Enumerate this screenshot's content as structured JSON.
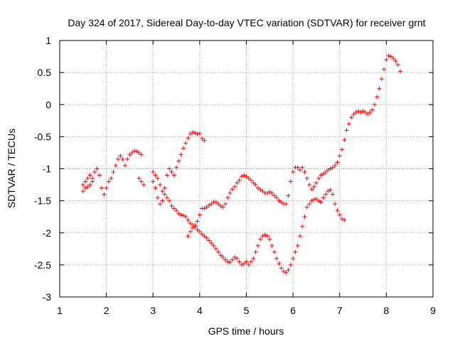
{
  "chart_data": {
    "type": "scatter",
    "title": "Day 324 of 2017, Sidereal Day-to-day VTEC variation (SDTVAR) for receiver grnt",
    "xlabel": "GPS time / hours",
    "ylabel": "SDTVAR / TECUs",
    "xlim": [
      1,
      9
    ],
    "ylim": [
      -3,
      1
    ],
    "xticks": [
      "1",
      "2",
      "3",
      "4",
      "5",
      "6",
      "7",
      "8",
      "9"
    ],
    "yticks": [
      "1",
      "0.5",
      "0",
      "-0.5",
      "-1",
      "-1.5",
      "-2",
      "-2.5",
      "-3"
    ],
    "grid": true,
    "marker": "+",
    "color": "#ff0000",
    "series": [
      {
        "x": [
          1.5,
          1.55,
          1.6,
          1.65,
          1.7,
          1.75,
          1.8,
          1.85,
          1.9,
          1.95,
          2.0,
          2.05,
          2.1,
          2.15,
          2.2,
          2.25,
          2.3,
          2.35,
          2.4,
          2.45,
          2.5,
          2.55,
          2.6,
          2.65,
          2.7,
          2.75
        ],
        "y": [
          -1.25,
          -1.2,
          -1.15,
          -1.1,
          -1.15,
          -1.05,
          -1.0,
          -1.1,
          -1.3,
          -1.4,
          -1.3,
          -1.2,
          -1.15,
          -1.05,
          -0.95,
          -0.85,
          -0.8,
          -0.85,
          -0.95,
          -0.85,
          -0.78,
          -0.75,
          -0.72,
          -0.73,
          -0.75,
          -0.78
        ]
      },
      {
        "x": [
          1.5,
          1.55,
          1.6,
          1.65,
          1.7
        ],
        "y": [
          -1.35,
          -1.3,
          -1.28,
          -1.25,
          -1.2
        ]
      },
      {
        "x": [
          2.7,
          2.75,
          2.8
        ],
        "y": [
          -1.15,
          -1.2,
          -1.25
        ]
      },
      {
        "x": [
          3.0,
          3.05,
          3.1,
          3.15,
          3.2,
          3.25,
          3.3,
          3.35,
          3.4,
          3.45,
          3.5,
          3.55,
          3.6,
          3.65,
          3.7,
          3.75,
          3.8,
          3.85,
          3.9,
          3.95,
          4.0,
          4.05,
          4.1
        ],
        "y": [
          -1.2,
          -1.3,
          -1.45,
          -1.55,
          -1.5,
          -1.3,
          -1.1,
          -1.0,
          -1.05,
          -1.1,
          -0.98,
          -0.88,
          -0.78,
          -0.68,
          -0.6,
          -0.52,
          -0.46,
          -0.43,
          -0.44,
          -0.46,
          -0.45,
          -0.53,
          -0.56
        ]
      },
      {
        "x": [
          3.0,
          3.05,
          3.1,
          3.15,
          3.2,
          3.25,
          3.3,
          3.35,
          3.4,
          3.45,
          3.5,
          3.55,
          3.6,
          3.65,
          3.7,
          3.75,
          3.8,
          3.85,
          3.9,
          3.95,
          4.0,
          4.05,
          4.1,
          4.15,
          4.2,
          4.25,
          4.3,
          4.35,
          4.4,
          4.45,
          4.5,
          4.55,
          4.6,
          4.65,
          4.7,
          4.75,
          4.8,
          4.85,
          4.9,
          4.95,
          5.0,
          5.05,
          5.1,
          5.15,
          5.2,
          5.25,
          5.3,
          5.35,
          5.4,
          5.45,
          5.5,
          5.55,
          5.6,
          5.65,
          5.7,
          5.75,
          5.8,
          5.85,
          5.9,
          5.95,
          6.0,
          6.05,
          6.1,
          6.15,
          6.2,
          6.25,
          6.3,
          6.35,
          6.4,
          6.45,
          6.5,
          6.55,
          6.6,
          6.65,
          6.7,
          6.75,
          6.8,
          6.85,
          6.9,
          6.95,
          7.0,
          7.05,
          7.1
        ],
        "y": [
          -1.05,
          -1.1,
          -1.15,
          -1.25,
          -1.35,
          -1.4,
          -1.45,
          -1.5,
          -1.58,
          -1.62,
          -1.65,
          -1.7,
          -1.72,
          -1.73,
          -1.75,
          -1.8,
          -1.85,
          -1.88,
          -1.9,
          -1.95,
          -1.98,
          -2.02,
          -2.05,
          -2.08,
          -2.12,
          -2.16,
          -2.2,
          -2.25,
          -2.3,
          -2.35,
          -2.38,
          -2.42,
          -2.45,
          -2.46,
          -2.42,
          -2.38,
          -2.4,
          -2.45,
          -2.5,
          -2.48,
          -2.45,
          -2.5,
          -2.45,
          -2.4,
          -2.3,
          -2.2,
          -2.1,
          -2.05,
          -2.03,
          -2.05,
          -2.1,
          -2.2,
          -2.3,
          -2.4,
          -2.48,
          -2.55,
          -2.6,
          -2.62,
          -2.58,
          -2.5,
          -2.4,
          -2.3,
          -2.2,
          -2.05,
          -1.9,
          -1.75,
          -1.6,
          -1.55,
          -1.5,
          -1.48,
          -1.47,
          -1.5,
          -1.52,
          -1.45,
          -1.4,
          -1.35,
          -1.33,
          -1.4,
          -1.55,
          -1.65,
          -1.72,
          -1.78,
          -1.8
        ]
      },
      {
        "x": [
          3.75,
          3.8,
          3.85,
          3.9,
          3.95,
          4.0,
          4.05,
          4.1,
          4.15,
          4.2,
          4.25,
          4.3,
          4.35,
          4.4,
          4.45,
          4.5,
          4.55,
          4.6,
          4.65,
          4.7,
          4.75,
          4.8,
          4.85,
          4.9,
          4.95,
          5.0,
          5.05,
          5.1,
          5.15,
          5.2,
          5.25,
          5.3,
          5.35,
          5.4,
          5.45,
          5.5,
          5.55,
          5.6,
          5.65,
          5.7,
          5.75,
          5.8,
          5.85,
          5.9,
          5.95,
          6.0,
          6.05,
          6.1,
          6.15,
          6.2,
          6.25,
          6.3,
          6.35,
          6.4,
          6.45,
          6.5,
          6.55,
          6.6,
          6.65,
          6.7,
          6.75,
          6.8,
          6.85,
          6.9,
          6.95,
          7.0,
          7.05,
          7.1,
          7.15,
          7.2,
          7.25,
          7.3,
          7.35,
          7.4,
          7.45,
          7.5,
          7.55,
          7.6,
          7.65,
          7.7,
          7.75,
          7.8,
          7.85,
          7.9,
          7.95,
          8.0,
          8.05,
          8.1,
          8.15,
          8.2,
          8.25,
          8.3
        ],
        "y": [
          -2.05,
          -1.98,
          -1.92,
          -1.88,
          -1.82,
          -1.72,
          -1.62,
          -1.62,
          -1.6,
          -1.57,
          -1.55,
          -1.52,
          -1.52,
          -1.55,
          -1.58,
          -1.6,
          -1.55,
          -1.45,
          -1.38,
          -1.32,
          -1.28,
          -1.22,
          -1.18,
          -1.12,
          -1.1,
          -1.12,
          -1.15,
          -1.18,
          -1.22,
          -1.25,
          -1.3,
          -1.33,
          -1.35,
          -1.38,
          -1.38,
          -1.36,
          -1.38,
          -1.42,
          -1.45,
          -1.5,
          -1.52,
          -1.55,
          -1.55,
          -1.42,
          -1.2,
          -1.05,
          -0.98,
          -0.98,
          -1.02,
          -0.98,
          -1.05,
          -1.15,
          -1.25,
          -1.32,
          -1.28,
          -1.22,
          -1.15,
          -1.1,
          -1.08,
          -1.05,
          -1.02,
          -1.0,
          -0.98,
          -0.95,
          -0.9,
          -0.8,
          -0.7,
          -0.55,
          -0.4,
          -0.3,
          -0.2,
          -0.15,
          -0.12,
          -0.1,
          -0.12,
          -0.1,
          -0.12,
          -0.15,
          -0.12,
          -0.08,
          0.0,
          0.12,
          0.25,
          0.4,
          0.55,
          0.7,
          0.76,
          0.75,
          0.72,
          0.68,
          0.62,
          0.52
        ]
      }
    ]
  }
}
